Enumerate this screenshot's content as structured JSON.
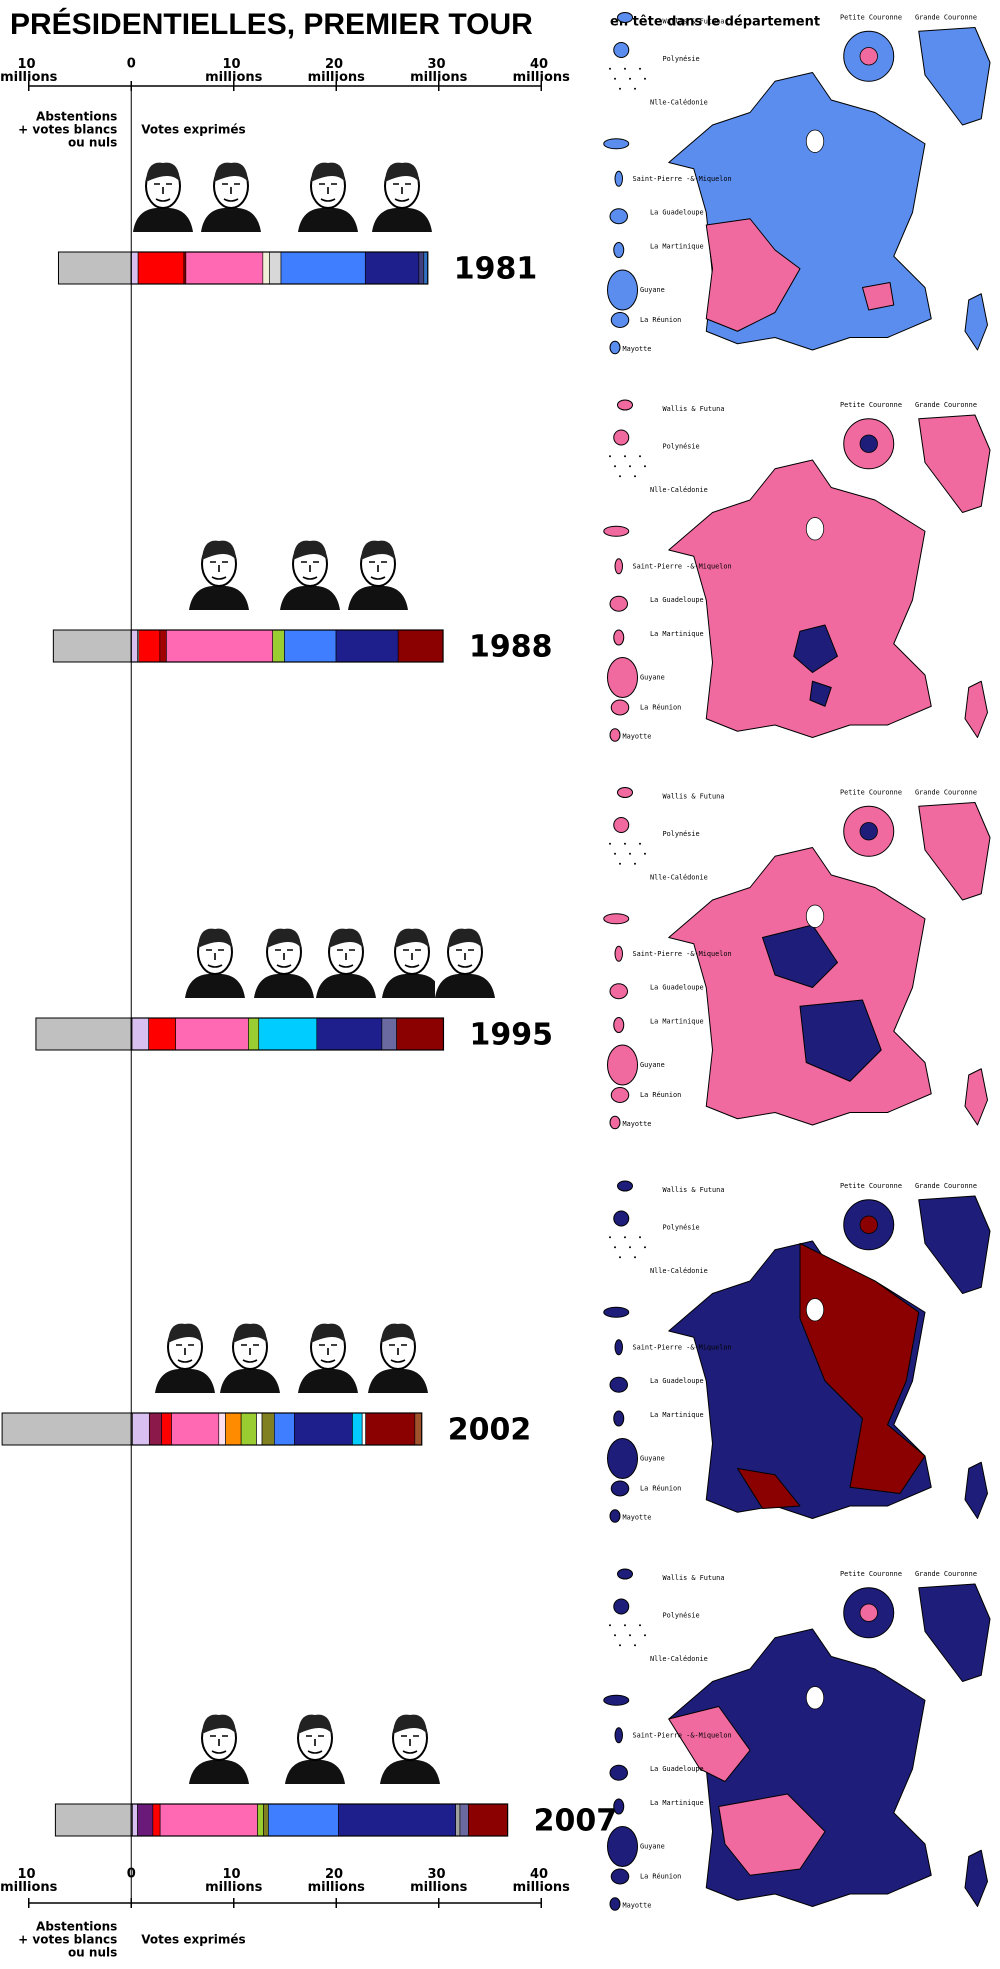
{
  "chart_data": {
    "type": "stacked-hbar",
    "title": "PRÉSIDENTIELLES, PREMIER TOUR",
    "map_heading": "en tête dans le département",
    "left_note": [
      "Abstentions",
      "+ votes blancs",
      "ou nuls"
    ],
    "right_note": "Votes exprimés",
    "xlim": [
      -10,
      40
    ],
    "xticks": [
      {
        "value": -10,
        "label": "10 millions"
      },
      0,
      {
        "value": 10,
        "label": "10 millions"
      },
      {
        "value": 20,
        "label": "20 millions"
      },
      {
        "value": 30,
        "label": "30 millions"
      },
      {
        "value": 40,
        "label": "40 millions"
      }
    ],
    "abstention_color": "#c0c0c0",
    "bars": [
      {
        "year": "1981",
        "abstention": 7.1,
        "segments": [
          {
            "color": "#d8c0f0",
            "value": 0.67
          },
          {
            "color": "#ff0000",
            "value": 4.46
          },
          {
            "color": "#800000",
            "value": 0.2
          },
          {
            "color": "#ff69b4",
            "value": 7.51
          },
          {
            "color": "#f0f0d8",
            "value": 0.64
          },
          {
            "color": "#d8d8d8",
            "value": 1.13
          },
          {
            "color": "#3f7fff",
            "value": 8.22
          },
          {
            "color": "#1e1e8c",
            "value": 5.23
          },
          {
            "color": "#404080",
            "value": 0.48
          },
          {
            "color": "#3070c0",
            "value": 0.39
          }
        ]
      },
      {
        "year": "1988",
        "abstention": 7.6,
        "segments": [
          {
            "color": "#d8c0f0",
            "value": 0.61
          },
          {
            "color": "#ffffff",
            "value": 0.12
          },
          {
            "color": "#ff0000",
            "value": 2.06
          },
          {
            "color": "#a00000",
            "value": 0.64
          },
          {
            "color": "#ff69b4",
            "value": 10.37
          },
          {
            "color": "#9acd32",
            "value": 1.15
          },
          {
            "color": "#3f7fff",
            "value": 5.03
          },
          {
            "color": "#1e1e8c",
            "value": 6.06
          },
          {
            "color": "#8b0000",
            "value": 4.38
          }
        ]
      },
      {
        "year": "1995",
        "abstention": 9.3,
        "segments": [
          {
            "color": "#ffffff",
            "value": 0.08
          },
          {
            "color": "#d8c0f0",
            "value": 1.62
          },
          {
            "color": "#ff0000",
            "value": 2.63
          },
          {
            "color": "#ff69b4",
            "value": 7.1
          },
          {
            "color": "#9acd32",
            "value": 1.01
          },
          {
            "color": "#00ccff",
            "value": 5.66
          },
          {
            "color": "#1e1e8c",
            "value": 6.35
          },
          {
            "color": "#6a6aa0",
            "value": 1.44
          },
          {
            "color": "#8b0000",
            "value": 4.57
          }
        ]
      },
      {
        "year": "2002",
        "abstention": 12.6,
        "segments": [
          {
            "color": "#ffffff",
            "value": 0.13
          },
          {
            "color": "#d8c0f0",
            "value": 1.63
          },
          {
            "color": "#8b1a4a",
            "value": 1.21
          },
          {
            "color": "#ff0000",
            "value": 0.96
          },
          {
            "color": "#ff69b4",
            "value": 4.61
          },
          {
            "color": "#ffe0f0",
            "value": 0.66
          },
          {
            "color": "#ff8c00",
            "value": 1.52
          },
          {
            "color": "#9acd32",
            "value": 1.5
          },
          {
            "color": "#ffffff",
            "value": 0.54
          },
          {
            "color": "#808020",
            "value": 1.2
          },
          {
            "color": "#3f7fff",
            "value": 1.95
          },
          {
            "color": "#1e1e8c",
            "value": 5.67
          },
          {
            "color": "#00ccff",
            "value": 0.95
          },
          {
            "color": "#ffffff",
            "value": 0.34
          },
          {
            "color": "#8b0000",
            "value": 4.8
          },
          {
            "color": "#a0522d",
            "value": 0.67
          }
        ]
      },
      {
        "year": "2007",
        "abstention": 7.4,
        "segments": [
          {
            "color": "#ffffff",
            "value": 0.12
          },
          {
            "color": "#d8c0f0",
            "value": 0.49
          },
          {
            "color": "#6a1b7a",
            "value": 1.5
          },
          {
            "color": "#ff0000",
            "value": 0.71
          },
          {
            "color": "#ff69b4",
            "value": 9.5
          },
          {
            "color": "#9acd32",
            "value": 0.58
          },
          {
            "color": "#808020",
            "value": 0.48
          },
          {
            "color": "#3f7fff",
            "value": 6.82
          },
          {
            "color": "#1e1e8c",
            "value": 11.45
          },
          {
            "color": "#a0a0a0",
            "value": 0.42
          },
          {
            "color": "#6a6aa0",
            "value": 0.82
          },
          {
            "color": "#8b0000",
            "value": 3.83
          }
        ]
      }
    ],
    "map_labels": {
      "insets": [
        "Wallis & Futuna",
        "Polynésie",
        "Nlle-Calédonie",
        "Saint-Pierre -&-Miquelon",
        "La Guadeloupe",
        "La Martinique",
        "Guyane",
        "La Réunion",
        "Mayotte"
      ],
      "petite": "Petite Couronne",
      "grande": "Grande Couronne"
    },
    "maps": [
      {
        "fill": "#5b8def",
        "accent": "#f06aa0"
      },
      {
        "fill": "#f06aa0",
        "accent": "#1e1e7a"
      },
      {
        "fill": "#f06aa0",
        "accent": "#1e1e7a"
      },
      {
        "fill": "#1e1e7a",
        "accent": "#8b0000"
      },
      {
        "fill": "#1e1e7a",
        "accent": "#f06aa0"
      }
    ]
  }
}
